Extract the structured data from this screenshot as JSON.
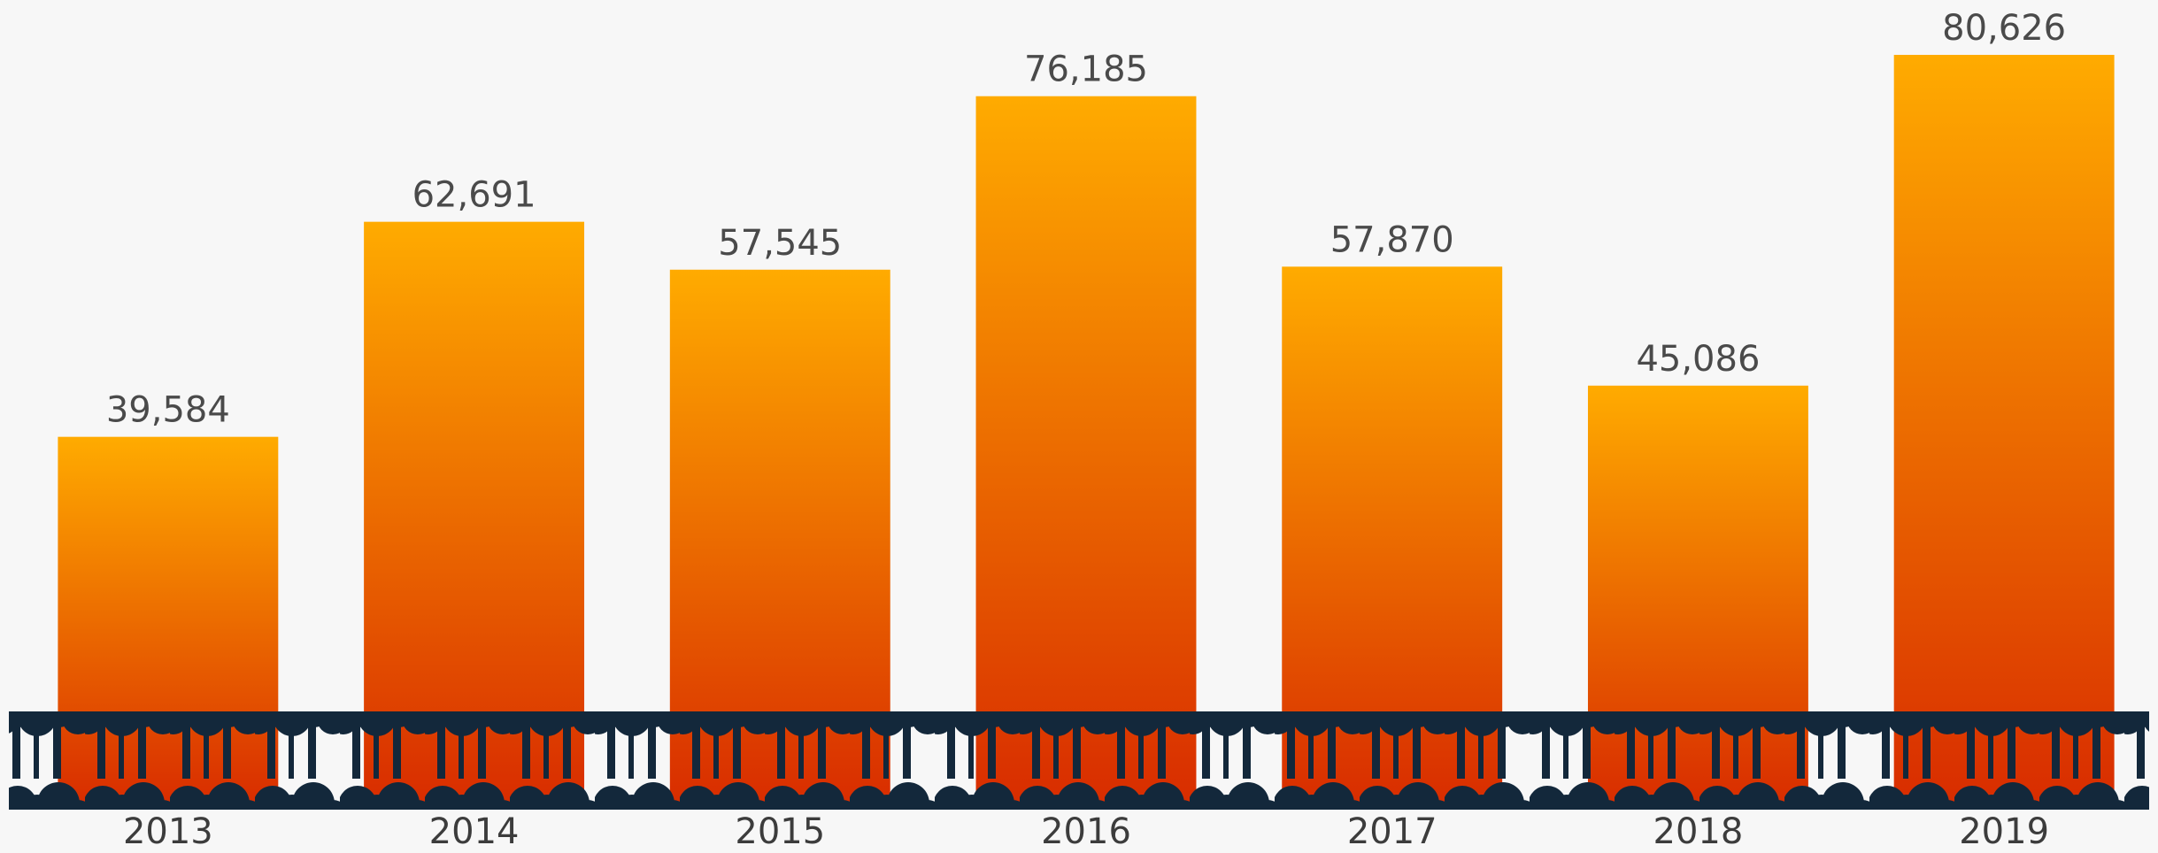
{
  "chart_data": {
    "type": "bar",
    "categories": [
      "2013",
      "2014",
      "2015",
      "2016",
      "2017",
      "2018",
      "2019"
    ],
    "values": [
      39584,
      62691,
      57545,
      76185,
      57870,
      45086,
      80626
    ],
    "value_labels": [
      "39,584",
      "62,691",
      "57,545",
      "76,185",
      "57,870",
      "45,086",
      "80,626"
    ],
    "gradient": [
      "#ffab00",
      "#d82c00"
    ],
    "ylim": [
      0,
      86000
    ]
  }
}
